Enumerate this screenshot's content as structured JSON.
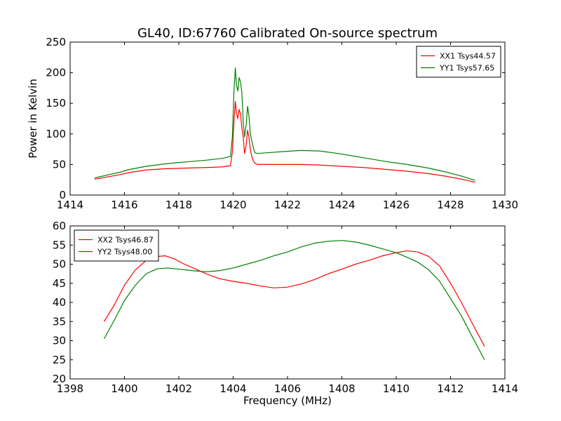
{
  "figure": {
    "title": "GL40, ID:67760 Calibrated On-source spectrum"
  },
  "chart_data": [
    {
      "type": "line",
      "title": "GL40, ID:67760 Calibrated On-source spectrum",
      "xlabel": "",
      "ylabel": "Power in Kelvin",
      "xlim": [
        1414,
        1430
      ],
      "ylim": [
        0,
        250
      ],
      "xticks": [
        1414,
        1416,
        1418,
        1420,
        1422,
        1424,
        1426,
        1428,
        1430
      ],
      "yticks": [
        0,
        50,
        100,
        150,
        200,
        250
      ],
      "grid": false,
      "legend_position": "top-right",
      "series": [
        {
          "name": "XX1 Tsys44.57",
          "color": "#ff0000",
          "x": [
            1414.9,
            1415.3,
            1415.8,
            1416.2,
            1416.8,
            1417.5,
            1418.2,
            1419.0,
            1419.6,
            1419.9,
            1419.97,
            1420.03,
            1420.08,
            1420.12,
            1420.17,
            1420.22,
            1420.27,
            1420.32,
            1420.37,
            1420.42,
            1420.48,
            1420.53,
            1420.58,
            1420.63,
            1420.68,
            1420.74,
            1420.8,
            1420.9,
            1421.2,
            1421.8,
            1422.5,
            1423.2,
            1424.0,
            1424.8,
            1425.6,
            1426.4,
            1427.2,
            1427.8,
            1428.4,
            1428.9
          ],
          "y": [
            26,
            29,
            33,
            37,
            41,
            43,
            44,
            45,
            46,
            48,
            70,
            120,
            153,
            135,
            125,
            140,
            133,
            110,
            95,
            68,
            82,
            106,
            95,
            75,
            64,
            56,
            52,
            50,
            50,
            50,
            50,
            49,
            47,
            45,
            42,
            39,
            35,
            31,
            26,
            21
          ]
        },
        {
          "name": "YY1 Tsys57.65",
          "color": "#008000",
          "x": [
            1414.9,
            1415.3,
            1415.8,
            1416.2,
            1416.8,
            1417.5,
            1418.2,
            1419.0,
            1419.6,
            1419.9,
            1419.97,
            1420.03,
            1420.08,
            1420.12,
            1420.17,
            1420.22,
            1420.27,
            1420.32,
            1420.37,
            1420.42,
            1420.48,
            1420.53,
            1420.58,
            1420.63,
            1420.68,
            1420.74,
            1420.8,
            1420.9,
            1421.2,
            1421.8,
            1422.5,
            1423.2,
            1424.0,
            1424.8,
            1425.6,
            1426.4,
            1427.2,
            1427.8,
            1428.4,
            1428.9
          ],
          "y": [
            28,
            32,
            37,
            42,
            47,
            51,
            54,
            57,
            60,
            63,
            95,
            170,
            208,
            180,
            170,
            192,
            185,
            168,
            120,
            95,
            115,
            145,
            130,
            100,
            90,
            78,
            69,
            68,
            69,
            71,
            73,
            72,
            67,
            61,
            55,
            50,
            44,
            38,
            31,
            24
          ]
        }
      ]
    },
    {
      "type": "line",
      "title": "",
      "xlabel": "Frequency (MHz)",
      "ylabel": "",
      "xlim": [
        1398,
        1414
      ],
      "ylim": [
        20,
        60
      ],
      "xticks": [
        1398,
        1400,
        1402,
        1404,
        1406,
        1408,
        1410,
        1412,
        1414
      ],
      "yticks": [
        20,
        25,
        30,
        35,
        40,
        45,
        50,
        55,
        60
      ],
      "grid": false,
      "legend_position": "top-left",
      "series": [
        {
          "name": "XX2 Tsys46.87",
          "color": "#ff0000",
          "x": [
            1399.25,
            1399.6,
            1400.0,
            1400.4,
            1400.8,
            1401.2,
            1401.5,
            1401.8,
            1402.2,
            1402.6,
            1403.0,
            1403.5,
            1404.0,
            1404.5,
            1405.0,
            1405.5,
            1406.0,
            1406.5,
            1407.0,
            1407.5,
            1408.0,
            1408.5,
            1409.0,
            1409.5,
            1410.0,
            1410.4,
            1410.8,
            1411.2,
            1411.6,
            1412.0,
            1412.4,
            1412.8,
            1413.25
          ],
          "y": [
            35,
            39,
            44.5,
            48.5,
            51,
            52,
            52.2,
            51.5,
            50,
            48.8,
            47.5,
            46.2,
            45.5,
            45,
            44.3,
            43.8,
            44,
            44.8,
            46,
            47.5,
            48.7,
            50,
            51,
            52.2,
            53,
            53.5,
            53.2,
            52,
            49.5,
            45,
            40,
            34.5,
            28.5
          ]
        },
        {
          "name": "YY2 Tsys48.00",
          "color": "#008000",
          "x": [
            1399.25,
            1399.6,
            1400.0,
            1400.4,
            1400.8,
            1401.2,
            1401.6,
            1402.0,
            1402.5,
            1403.0,
            1403.5,
            1404.0,
            1404.5,
            1405.0,
            1405.5,
            1406.0,
            1406.5,
            1407.0,
            1407.5,
            1408.0,
            1408.5,
            1409.0,
            1409.5,
            1410.0,
            1410.4,
            1410.8,
            1411.2,
            1411.6,
            1412.0,
            1412.4,
            1412.8,
            1413.25
          ],
          "y": [
            30.5,
            35,
            40.5,
            44.5,
            47.5,
            48.8,
            49,
            48.7,
            48.3,
            48,
            48.3,
            49,
            50,
            51,
            52.2,
            53.2,
            54.5,
            55.5,
            56,
            56.2,
            55.8,
            55,
            54,
            53,
            51.8,
            50.5,
            48.5,
            45.5,
            41,
            36.5,
            31,
            25
          ]
        }
      ]
    }
  ]
}
